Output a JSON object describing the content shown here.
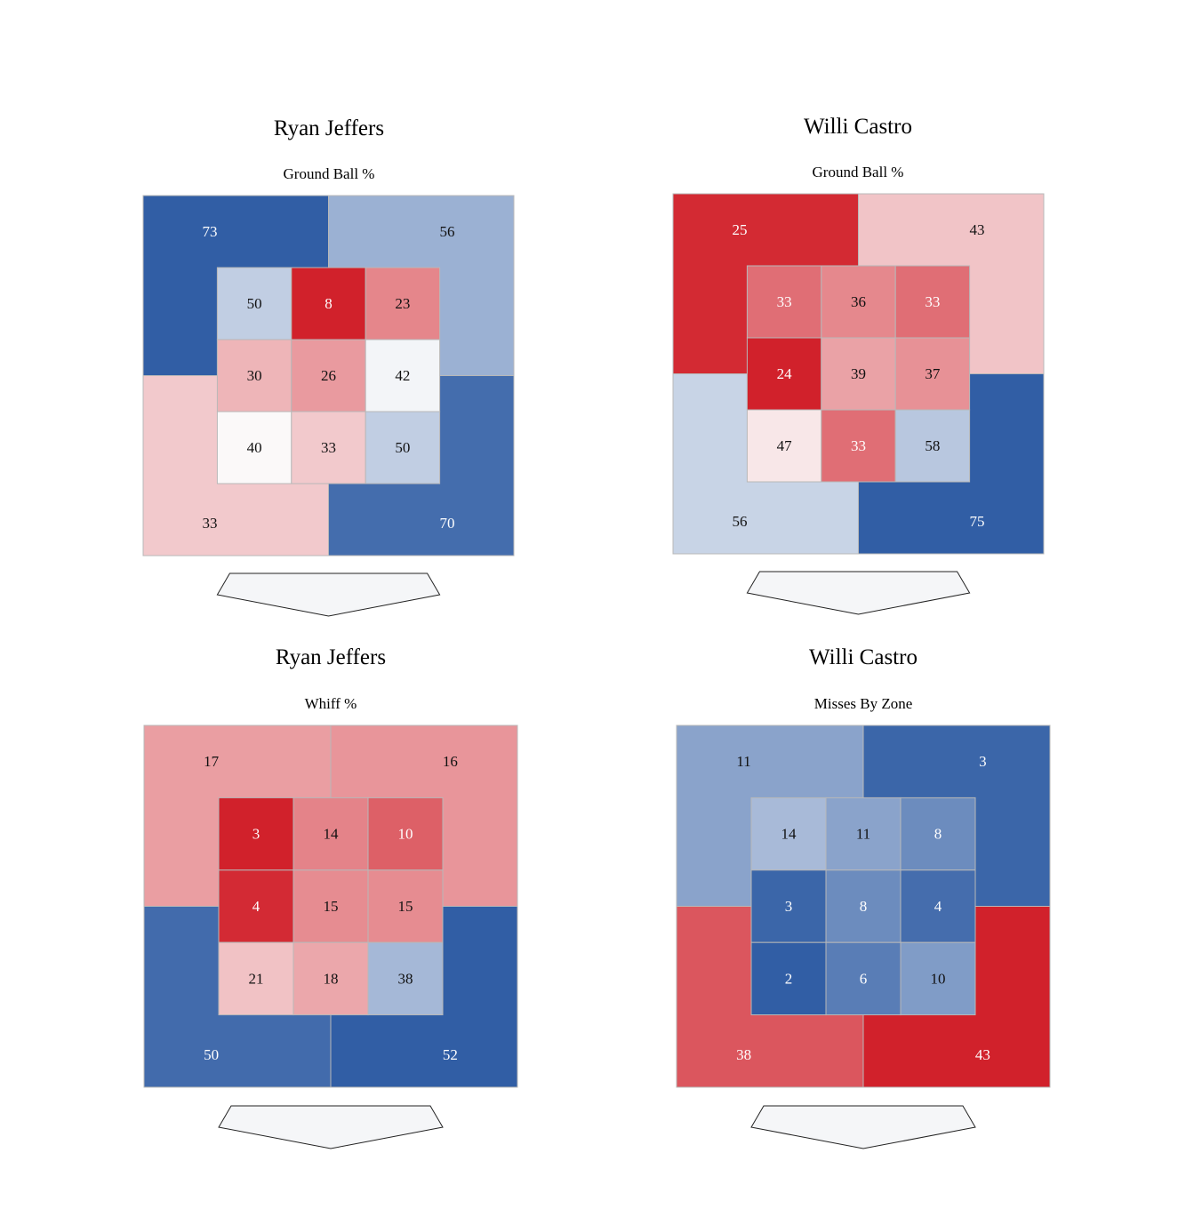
{
  "chart_data": [
    {
      "type": "heatmap",
      "player": "Ryan Jeffers",
      "metric": "Ground Ball %",
      "outer_zones": {
        "top_left": 73,
        "top_right": 56,
        "bottom_left": 33,
        "bottom_right": 70
      },
      "inner_zones": [
        [
          50,
          8,
          23
        ],
        [
          30,
          26,
          42
        ],
        [
          40,
          33,
          50
        ]
      ],
      "color_scale": "blue-high-red-low"
    },
    {
      "type": "heatmap",
      "player": "Willi Castro",
      "metric": "Ground Ball %",
      "outer_zones": {
        "top_left": 25,
        "top_right": 43,
        "bottom_left": 56,
        "bottom_right": 75
      },
      "inner_zones": [
        [
          33,
          36,
          33
        ],
        [
          24,
          39,
          37
        ],
        [
          47,
          33,
          58
        ]
      ],
      "color_scale": "blue-high-red-low"
    },
    {
      "type": "heatmap",
      "player": "Ryan Jeffers",
      "metric": "Whiff %",
      "outer_zones": {
        "top_left": 17,
        "top_right": 16,
        "bottom_left": 50,
        "bottom_right": 52
      },
      "inner_zones": [
        [
          3,
          14,
          10
        ],
        [
          4,
          15,
          15
        ],
        [
          21,
          18,
          38
        ]
      ],
      "color_scale": "blue-high-red-low"
    },
    {
      "type": "heatmap",
      "player": "Willi Castro",
      "metric": "Misses By Zone",
      "outer_zones": {
        "top_left": 11,
        "top_right": 3,
        "bottom_left": 38,
        "bottom_right": 43
      },
      "inner_zones": [
        [
          14,
          11,
          8
        ],
        [
          3,
          8,
          4
        ],
        [
          2,
          6,
          10
        ]
      ],
      "color_scale": "red-high-blue-low"
    }
  ]
}
